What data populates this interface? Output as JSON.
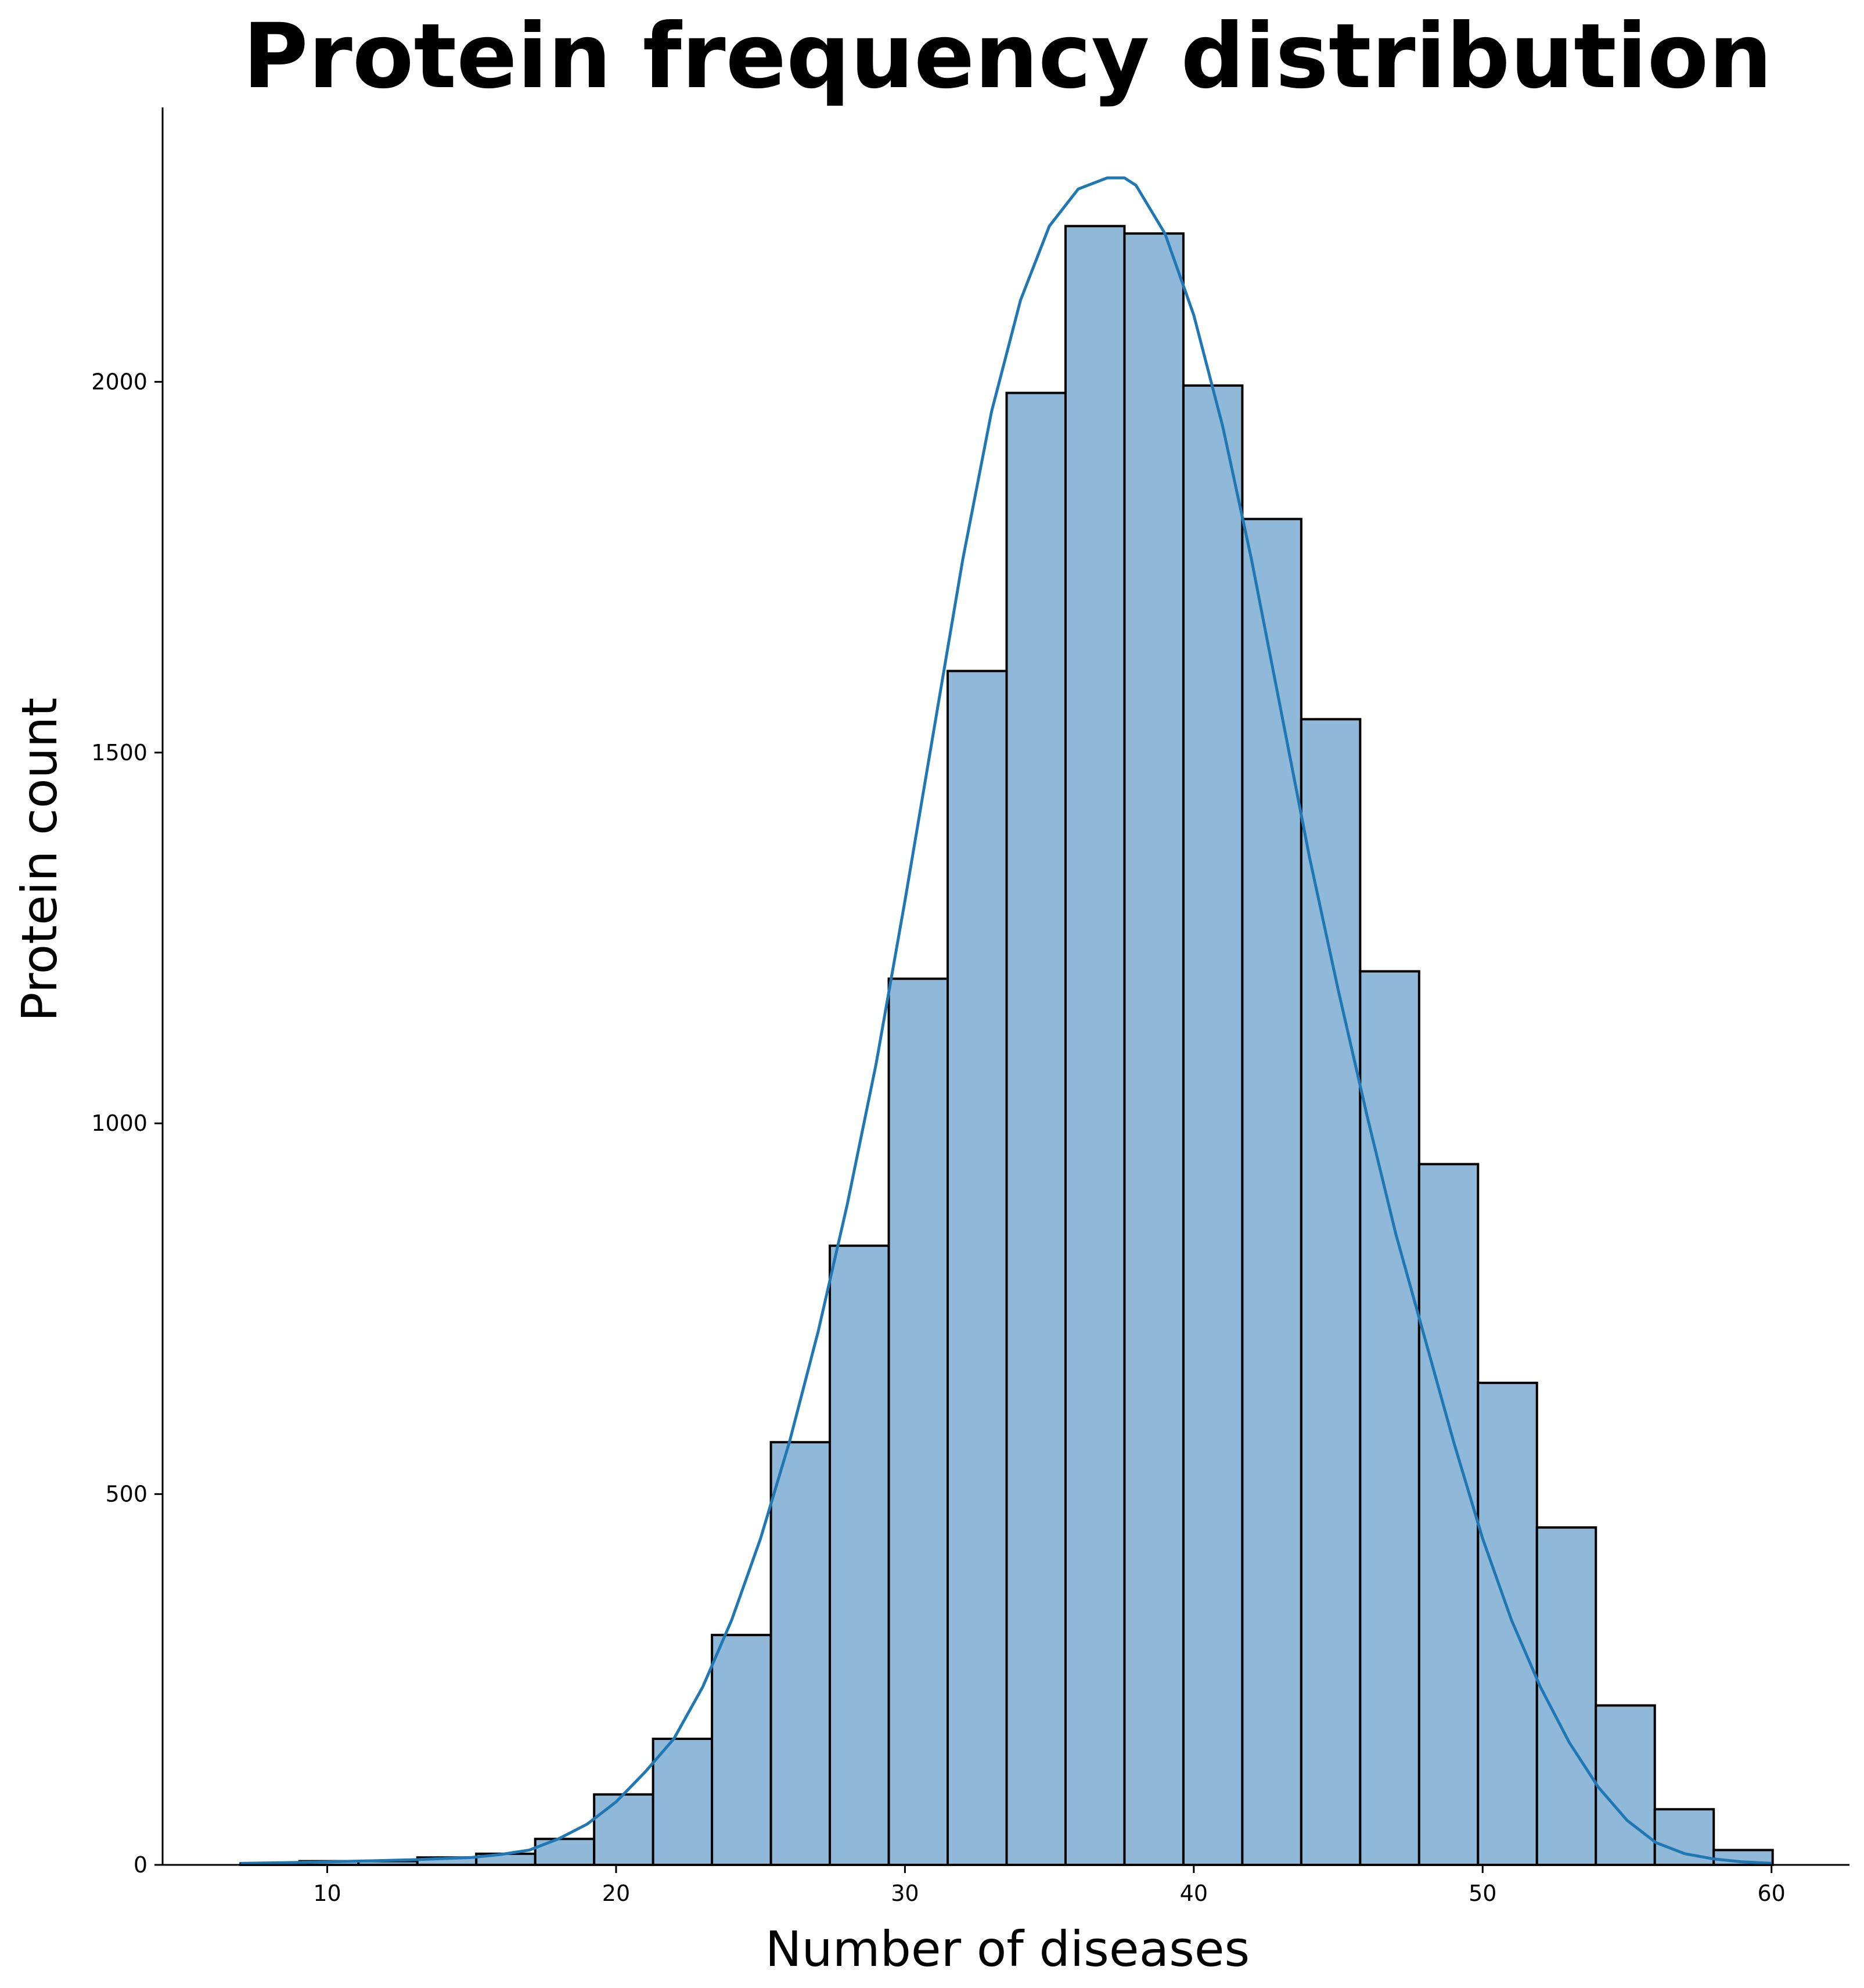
{
  "chart_data": {
    "type": "bar",
    "title": "Protein frequency distribution",
    "xlabel": "Number of diseases",
    "ylabel": "Protein count",
    "xlim": [
      4.3,
      62.7
    ],
    "ylim": [
      0,
      2370
    ],
    "xticks": [
      10,
      20,
      30,
      40,
      50,
      60
    ],
    "yticks": [
      0,
      500,
      1000,
      1500,
      2000
    ],
    "grid": false,
    "bins": {
      "edges": [
        7.0,
        9.04,
        11.08,
        13.12,
        15.16,
        17.2,
        19.24,
        21.28,
        23.32,
        25.36,
        27.4,
        29.44,
        31.48,
        33.52,
        35.56,
        37.6,
        39.64,
        41.68,
        43.72,
        45.76,
        47.8,
        49.84,
        51.88,
        53.92,
        55.96,
        58.0,
        60.04
      ],
      "counts": [
        2,
        5,
        5,
        10,
        15,
        35,
        95,
        170,
        310,
        570,
        835,
        1195,
        1610,
        1985,
        2210,
        2200,
        1995,
        1815,
        1545,
        1205,
        945,
        650,
        455,
        215,
        75,
        20
      ]
    },
    "kde": {
      "x": [
        7,
        10,
        13,
        15,
        16,
        17,
        18,
        19,
        20,
        21,
        22,
        23,
        24,
        25,
        26,
        27,
        28,
        29,
        30,
        31,
        32,
        33,
        34,
        35,
        36,
        37,
        37.6,
        38,
        39,
        40,
        41,
        42,
        43,
        44,
        45,
        46,
        47,
        48,
        49,
        50,
        51,
        52,
        53,
        54,
        55,
        56,
        57,
        58,
        59,
        60
      ],
      "y": [
        2,
        4,
        7,
        10,
        14,
        20,
        35,
        55,
        85,
        125,
        170,
        240,
        330,
        440,
        570,
        720,
        890,
        1080,
        1300,
        1530,
        1760,
        1960,
        2110,
        2210,
        2260,
        2275,
        2275,
        2265,
        2200,
        2090,
        1940,
        1760,
        1560,
        1360,
        1180,
        1010,
        850,
        710,
        570,
        440,
        330,
        240,
        165,
        105,
        60,
        30,
        15,
        8,
        4,
        2
      ]
    },
    "colors": {
      "bar_fill": "#8fb8d9",
      "bar_edge": "#000000",
      "kde_line": "#1f77b4",
      "axis": "#000000"
    }
  }
}
